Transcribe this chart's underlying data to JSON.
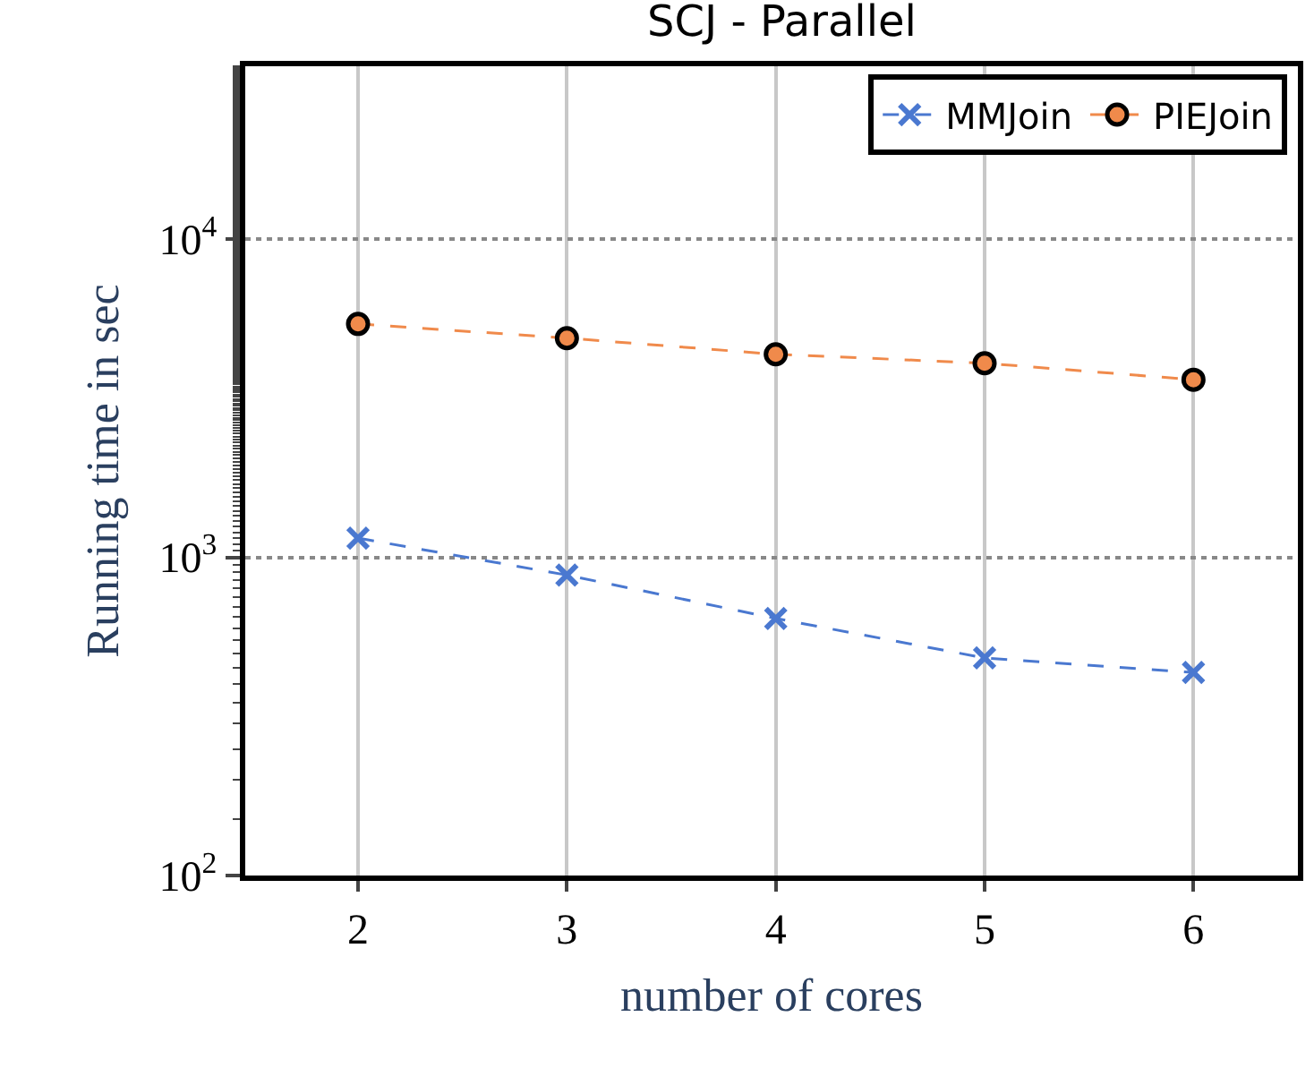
{
  "chart_data": {
    "type": "line",
    "title": "SCJ - Parallel",
    "xlabel": "number of cores",
    "ylabel": "Running time in sec",
    "x": [
      2,
      3,
      4,
      5,
      6
    ],
    "series": [
      {
        "name": "MMJoin",
        "color": "#4a78d0",
        "marker": "cross",
        "values": [
          1150,
          880,
          643,
          483,
          435
        ]
      },
      {
        "name": "PIEJoin",
        "color": "#f08a4b",
        "marker": "circle",
        "values": [
          5420,
          4890,
          4350,
          4080,
          3620
        ]
      }
    ],
    "log": "y",
    "xlim": [
      1.46,
      6.5
    ],
    "ylim": [
      100,
      35000
    ],
    "xticks": [
      2,
      3,
      4,
      5,
      6
    ],
    "yticks": [
      {
        "value": 100,
        "label": "10$^{2}$"
      },
      {
        "value": 1000,
        "label": "10$^{3}$"
      },
      {
        "value": 10000,
        "label": "10$^{4}$"
      }
    ],
    "grid": true,
    "legend": "top right",
    "line_style": "dashed"
  }
}
